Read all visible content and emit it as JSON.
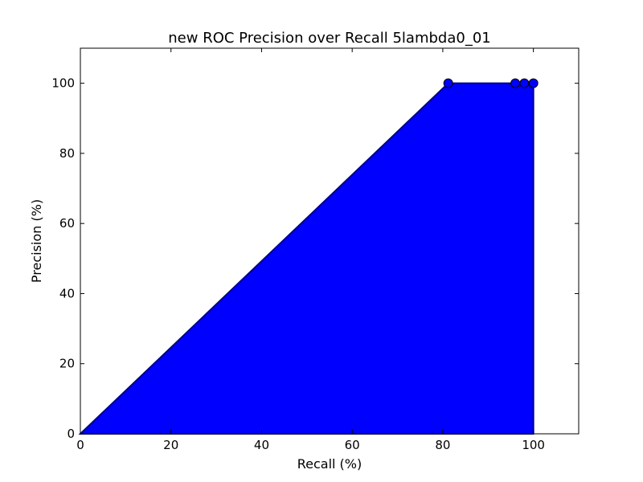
{
  "chart_data": {
    "type": "area",
    "title": "new ROC Precision over Recall 5lambda0_01",
    "xlabel": "Recall (%)",
    "ylabel": "Precision (%)",
    "xlim": [
      0,
      110
    ],
    "ylim": [
      0,
      110
    ],
    "xticks": [
      0,
      20,
      40,
      60,
      80,
      100
    ],
    "yticks": [
      0,
      20,
      40,
      60,
      80,
      100
    ],
    "grid": false,
    "series": [
      {
        "fill_color": "#0000ff",
        "line_color": "#00008b",
        "marker_color": "#0000ff",
        "x": [
          0,
          81.2,
          96,
          98,
          100,
          100
        ],
        "y": [
          0,
          100,
          100,
          100,
          100,
          0
        ],
        "markers_x": [
          81.2,
          96,
          98,
          100
        ],
        "markers_y": [
          100,
          100,
          100,
          100
        ]
      }
    ]
  }
}
